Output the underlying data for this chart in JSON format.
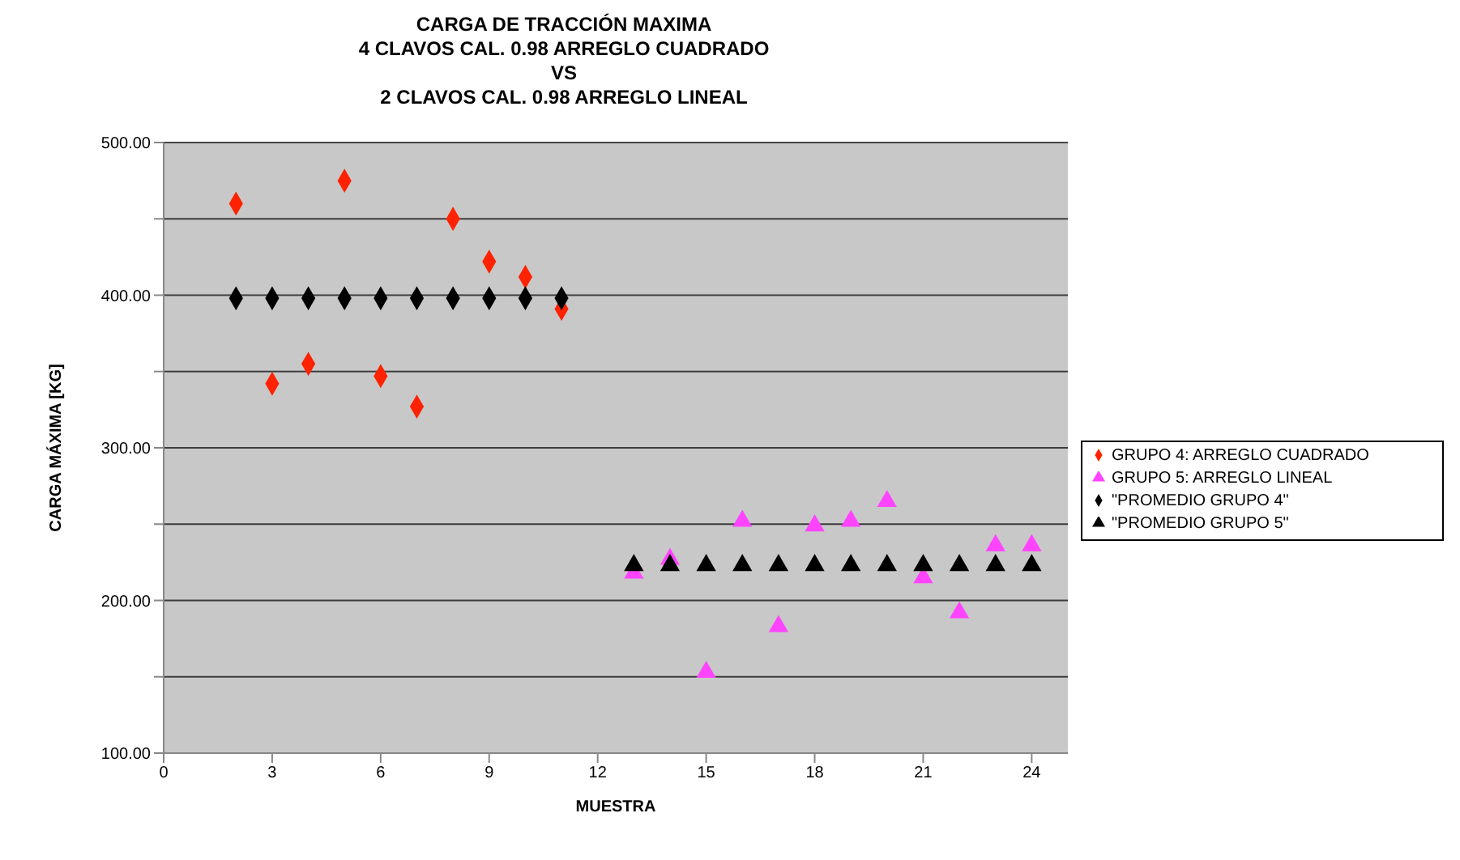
{
  "chart_data": {
    "type": "scatter",
    "title": "CARGA DE TRACCIÓN MAXIMA\n4 CLAVOS CAL. 0.98 ARREGLO CUADRADO\nVS\n2 CLAVOS CAL. 0.98 ARREGLO LINEAL",
    "xlabel": "MUESTRA",
    "ylabel": "CARGA MÁXIMA [KG]",
    "xlim": [
      0,
      25
    ],
    "xticks": [
      0,
      3,
      6,
      9,
      12,
      15,
      18,
      21,
      24
    ],
    "ylim": [
      100,
      500
    ],
    "yticks": [
      {
        "value": 100,
        "label": "100.00"
      },
      {
        "value": 150,
        "label": null
      },
      {
        "value": 200,
        "label": "200.00"
      },
      {
        "value": 250,
        "label": null
      },
      {
        "value": 300,
        "label": "300.00"
      },
      {
        "value": 350,
        "label": null
      },
      {
        "value": 400,
        "label": "400.00"
      },
      {
        "value": 450,
        "label": null
      },
      {
        "value": 500,
        "label": "500.00"
      }
    ],
    "grid": "y",
    "legend": "right",
    "series": [
      {
        "name": "GRUPO 4: ARREGLO CUADRADO",
        "color": "#ff2200",
        "marker": "diamond",
        "x": [
          2,
          3,
          4,
          5,
          6,
          7,
          8,
          9,
          10,
          11
        ],
        "values": [
          460,
          342,
          355,
          475,
          347,
          327,
          450,
          422,
          412,
          391
        ]
      },
      {
        "name": "GRUPO 5: ARREGLO LINEAL",
        "color": "#ff44ff",
        "marker": "triangle",
        "x": [
          13,
          14,
          15,
          16,
          17,
          18,
          19,
          20,
          21,
          22,
          23,
          24
        ],
        "values": [
          218,
          227,
          153,
          252,
          183,
          249,
          252,
          265,
          215,
          192,
          236,
          236
        ]
      },
      {
        "name": "\"PROMEDIO GRUPO 4\"",
        "color": "#000000",
        "marker": "diamond",
        "x": [
          2,
          3,
          4,
          5,
          6,
          7,
          8,
          9,
          10,
          11
        ],
        "values": [
          398,
          398,
          398,
          398,
          398,
          398,
          398,
          398,
          398,
          398
        ]
      },
      {
        "name": "\"PROMEDIO GRUPO 5\"",
        "color": "#000000",
        "marker": "triangle",
        "x": [
          13,
          14,
          15,
          16,
          17,
          18,
          19,
          20,
          21,
          22,
          23,
          24
        ],
        "values": [
          223,
          223,
          223,
          223,
          223,
          223,
          223,
          223,
          223,
          223,
          223,
          223
        ]
      }
    ]
  }
}
